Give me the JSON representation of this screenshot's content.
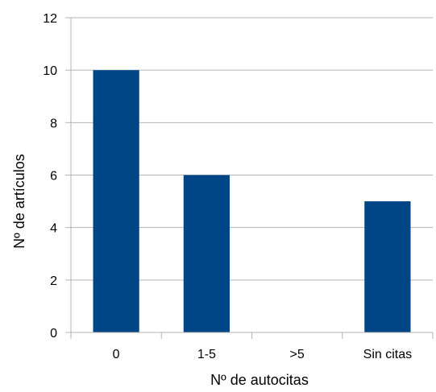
{
  "chart_data": {
    "type": "bar",
    "categories": [
      "0",
      "1-5",
      ">5",
      "Sin citas"
    ],
    "values": [
      10,
      6,
      0,
      5
    ],
    "xlabel": "Nº de autocitas",
    "ylabel": "Nº de artículos",
    "ylim": [
      0,
      12
    ],
    "yticks": [
      "0",
      "2",
      "4",
      "6",
      "8",
      "10",
      "12"
    ],
    "grid": true,
    "legend": "none",
    "colors": {
      "bar": "#004586",
      "grid": "#b3b3b3",
      "axis": "#b3b3b3"
    }
  }
}
